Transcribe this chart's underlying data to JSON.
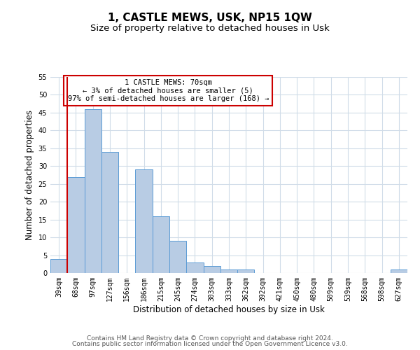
{
  "title": "1, CASTLE MEWS, USK, NP15 1QW",
  "subtitle": "Size of property relative to detached houses in Usk",
  "xlabel": "Distribution of detached houses by size in Usk",
  "ylabel": "Number of detached properties",
  "bar_labels": [
    "39sqm",
    "68sqm",
    "97sqm",
    "127sqm",
    "156sqm",
    "186sqm",
    "215sqm",
    "245sqm",
    "274sqm",
    "303sqm",
    "333sqm",
    "362sqm",
    "392sqm",
    "421sqm",
    "450sqm",
    "480sqm",
    "509sqm",
    "539sqm",
    "568sqm",
    "598sqm",
    "627sqm"
  ],
  "bar_values": [
    4,
    27,
    46,
    34,
    0,
    29,
    16,
    9,
    3,
    2,
    1,
    1,
    0,
    0,
    0,
    0,
    0,
    0,
    0,
    0,
    1
  ],
  "bar_color": "#b8cce4",
  "bar_edge_color": "#5b9bd5",
  "ylim": [
    0,
    55
  ],
  "yticks": [
    0,
    5,
    10,
    15,
    20,
    25,
    30,
    35,
    40,
    45,
    50,
    55
  ],
  "vline_index": 1,
  "vline_color": "#cc0000",
  "annotation_box_text": "1 CASTLE MEWS: 70sqm\n← 3% of detached houses are smaller (5)\n97% of semi-detached houses are larger (168) →",
  "annotation_box_color": "#ffffff",
  "annotation_box_edge_color": "#cc0000",
  "footer_line1": "Contains HM Land Registry data © Crown copyright and database right 2024.",
  "footer_line2": "Contains public sector information licensed under the Open Government Licence v3.0.",
  "bg_color": "#ffffff",
  "grid_color": "#d0dce8",
  "title_fontsize": 11,
  "subtitle_fontsize": 9.5,
  "axis_label_fontsize": 8.5,
  "tick_fontsize": 7,
  "annotation_fontsize": 7.5,
  "footer_fontsize": 6.5
}
